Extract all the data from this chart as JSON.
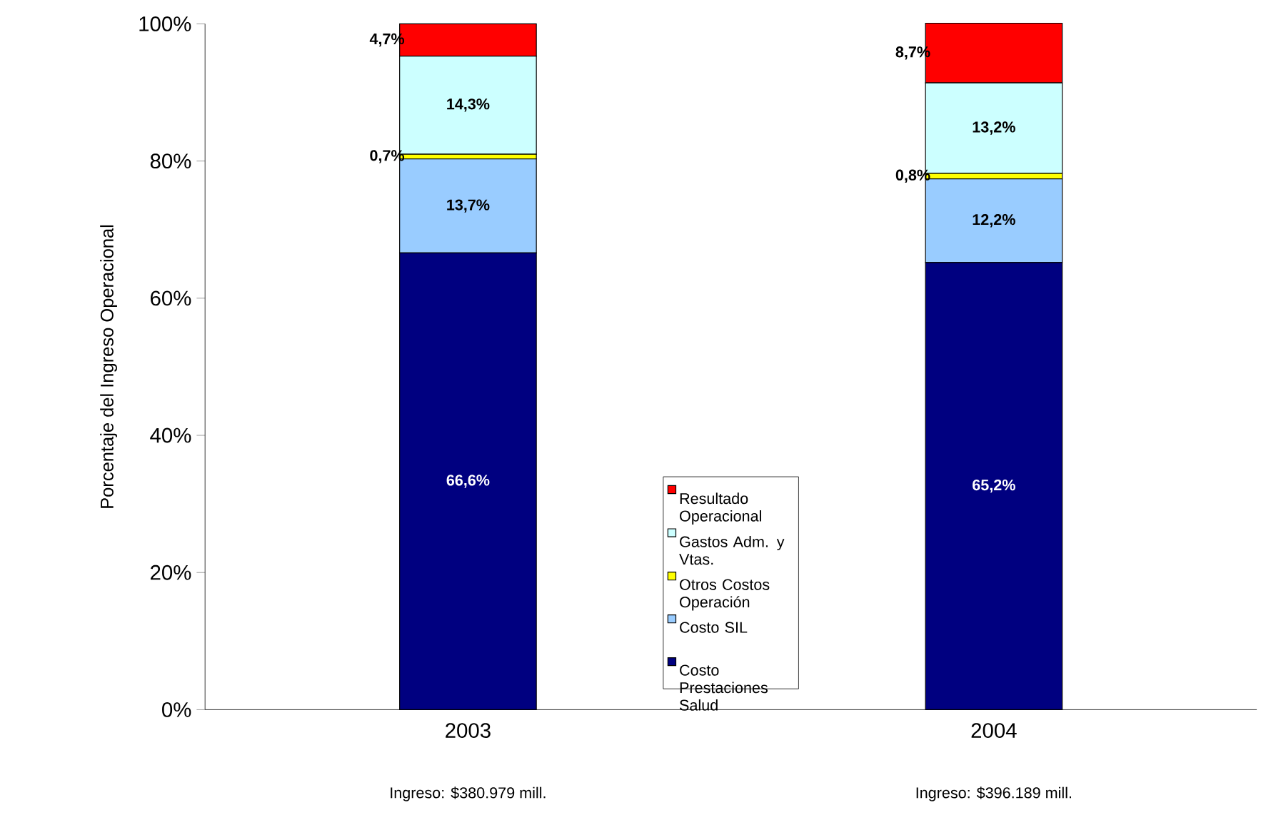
{
  "chart_data": {
    "type": "bar",
    "stacked": true,
    "ylabel": "Porcentaje del Ingreso Operacional",
    "categories": [
      "2003",
      "2004"
    ],
    "ylim": [
      0,
      100
    ],
    "yticks": [
      {
        "value": 0,
        "label": "0%"
      },
      {
        "value": 20,
        "label": "20%"
      },
      {
        "value": 40,
        "label": "40%"
      },
      {
        "value": 60,
        "label": "60%"
      },
      {
        "value": 80,
        "label": "80%"
      },
      {
        "value": 100,
        "label": "100%"
      }
    ],
    "legend": "bottom",
    "grid": false,
    "annotations": [
      "Ingreso: $380.979 mill.",
      "Ingreso: $396.189 mill."
    ],
    "series": [
      {
        "name": "Costo Prestaciones Salud",
        "color": "#000080",
        "values": [
          66.6,
          65.2
        ],
        "value_labels": [
          "66,6%",
          "65,2%"
        ]
      },
      {
        "name": "Costo SIL",
        "color": "#99ccff",
        "values": [
          13.7,
          12.2
        ],
        "value_labels": [
          "13,7%",
          "12,2%"
        ]
      },
      {
        "name": "Otros Costos Operación",
        "color": "#ffff00",
        "values": [
          0.7,
          0.8
        ],
        "value_labels": [
          "0,7%",
          "0,8%"
        ]
      },
      {
        "name": "Gastos Adm. y Vtas.",
        "color": "#ccffff",
        "values": [
          14.3,
          13.2
        ],
        "value_labels": [
          "14,3%",
          "13,2%"
        ]
      },
      {
        "name": "Resultado Operacional",
        "color": "#ff0000",
        "values": [
          4.7,
          8.7
        ],
        "value_labels": [
          "4,7%",
          "8,7%"
        ]
      }
    ]
  }
}
